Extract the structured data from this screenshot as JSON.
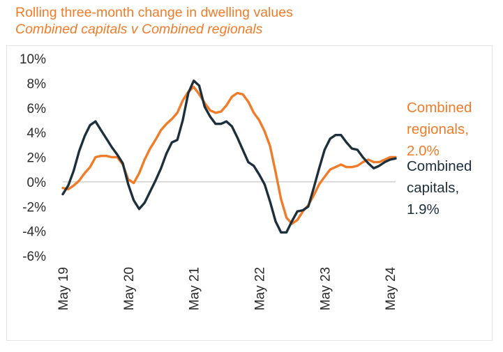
{
  "title_line1": "Rolling three-month change in dwelling values",
  "title_line2": "Combined capitals v Combined regionals",
  "colors": {
    "capitals": "#1e2f3c",
    "regionals": "#f07c2a",
    "zero_line": "#d0d0d0"
  },
  "chart_data": {
    "type": "line",
    "title": "Rolling three-month change in dwelling values",
    "subtitle": "Combined capitals v Combined regionals",
    "ylim": [
      -6,
      10
    ],
    "y_ticks": [
      "10%",
      "8%",
      "6%",
      "4%",
      "2%",
      "0%",
      "-2%",
      "-4%",
      "-6%"
    ],
    "x_ticks": [
      "May 19",
      "May 20",
      "May 21",
      "May 22",
      "May 23",
      "May 24"
    ],
    "x_start": "2019-05",
    "x_end": "2024-05",
    "grid": false,
    "legend": "end labels",
    "series": [
      {
        "name": "Combined capitals",
        "end_label_lines": [
          "Combined",
          "capitals,",
          "1.9%"
        ],
        "values": [
          -1.0,
          -0.3,
          0.9,
          2.5,
          3.7,
          4.6,
          4.9,
          4.2,
          3.5,
          2.8,
          2.2,
          1.5,
          -0.2,
          -1.5,
          -2.2,
          -1.7,
          -0.8,
          0.1,
          1.1,
          2.3,
          3.2,
          3.4,
          5.0,
          7.2,
          8.2,
          7.8,
          6.1,
          5.3,
          4.7,
          4.7,
          4.9,
          4.5,
          3.6,
          2.6,
          1.6,
          1.3,
          0.6,
          -0.2,
          -1.6,
          -3.2,
          -4.1,
          -4.1,
          -3.2,
          -2.4,
          -2.3,
          -2.0,
          -0.5,
          1.1,
          2.6,
          3.5,
          3.8,
          3.8,
          3.2,
          2.7,
          2.6,
          2.0,
          1.5,
          1.1,
          1.3,
          1.6,
          1.8,
          1.9
        ]
      },
      {
        "name": "Combined regionals",
        "end_label_lines": [
          "Combined",
          "regionals,",
          "2.0%"
        ],
        "values": [
          -0.5,
          -0.6,
          -0.3,
          0.1,
          0.7,
          1.2,
          2.0,
          2.1,
          2.1,
          2.0,
          2.0,
          1.4,
          0.2,
          -0.1,
          0.7,
          1.8,
          2.7,
          3.4,
          4.2,
          4.7,
          5.1,
          5.6,
          6.6,
          7.3,
          7.7,
          7.1,
          6.4,
          5.8,
          5.6,
          5.7,
          6.2,
          6.9,
          7.2,
          7.1,
          6.5,
          5.6,
          5.0,
          4.1,
          2.9,
          0.8,
          -1.4,
          -2.9,
          -3.4,
          -3.1,
          -2.4,
          -1.9,
          -1.1,
          -0.2,
          0.4,
          1.0,
          1.2,
          1.4,
          1.2,
          1.2,
          1.3,
          1.6,
          1.8,
          1.6,
          1.6,
          1.8,
          2.0,
          2.0
        ]
      }
    ]
  }
}
